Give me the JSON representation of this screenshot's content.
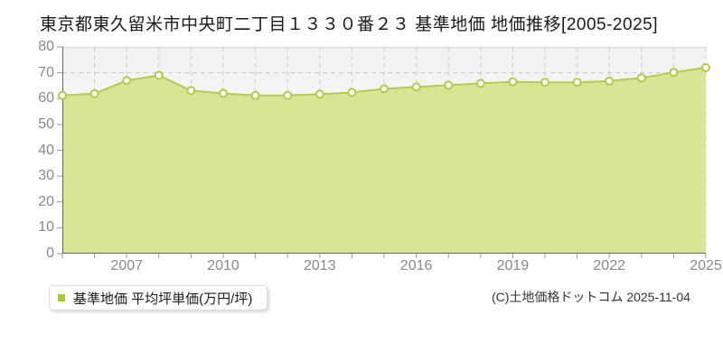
{
  "title": "東京都東久留米市中央町二丁目１３３０番２３ 基準地価 地価推移[2005-2025]",
  "legend": {
    "label": "基準地価 平均坪単価(万円/坪)",
    "marker_color": "#a6c836"
  },
  "copyright": "(C)土地価格ドットコム 2025-11-04",
  "chart_data": {
    "type": "area",
    "x": [
      2005,
      2006,
      2007,
      2008,
      2009,
      2010,
      2011,
      2012,
      2013,
      2014,
      2015,
      2016,
      2017,
      2018,
      2019,
      2020,
      2021,
      2022,
      2023,
      2024,
      2025
    ],
    "series": [
      {
        "name": "基準地価 平均坪単価(万円/坪)",
        "values": [
          61.2,
          61.9,
          67.0,
          69.0,
          63.1,
          62.0,
          61.2,
          61.2,
          61.7,
          62.4,
          63.8,
          64.5,
          65.2,
          65.9,
          66.5,
          66.3,
          66.3,
          66.8,
          68.0,
          70.1,
          72.0
        ]
      }
    ],
    "title": "東京都東久留米市中央町二丁目１３３０番２３ 基準地価 地価推移[2005-2025]",
    "xlabel": "",
    "ylabel": "万円/坪",
    "ylim": [
      0,
      80
    ],
    "ytick_step": 10,
    "ytick_labels": [
      "0",
      "10",
      "20",
      "30",
      "40",
      "50",
      "60",
      "70",
      "80"
    ],
    "xtick_labels": [
      "2007",
      "2010",
      "2013",
      "2016",
      "2019",
      "2022",
      "2025"
    ],
    "grid": true,
    "legend_position": "bottom-left",
    "colors": {
      "fill": "#d7e595",
      "line": "#b4cc4e",
      "marker_fill": "#ffffff",
      "marker_stroke": "#b2ca48",
      "grid": "#cccccc",
      "top_border": "#d9d9d9",
      "axis": "#666666",
      "tick": "#999999",
      "tick_label": "#898989"
    }
  }
}
